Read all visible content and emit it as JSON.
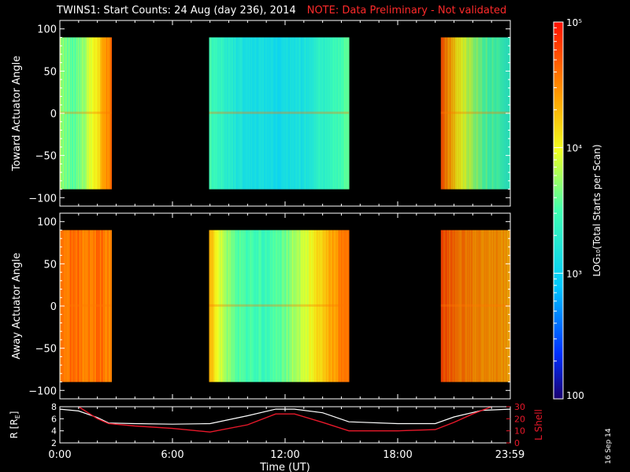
{
  "header": {
    "title": "TWINS1: Start Counts: 24 Aug (day 236), 2014",
    "note": "NOTE: Data Preliminary - Not validated"
  },
  "stamp": "16 Sep 14",
  "colors": {
    "note": "#ff2a2a",
    "lshell": "#e8182a",
    "radius": "#ffffff"
  },
  "chart_data": [
    {
      "type": "heatmap",
      "ylabel": "Toward Actuator Angle",
      "ylim": [
        -110,
        110
      ],
      "yticks": [
        "100",
        "50",
        "0",
        "−50",
        "−100"
      ],
      "ytick_values": [
        100,
        50,
        0,
        -50,
        -100
      ],
      "xlim": [
        0,
        24
      ],
      "angle_range": [
        -90,
        90
      ],
      "segments": [
        {
          "t0": 0.0,
          "t1": 2.75,
          "levels": [
            0.58,
            0.55,
            0.53,
            0.55,
            0.6,
            0.66,
            0.72,
            0.8,
            0.88
          ]
        },
        {
          "t0": 7.95,
          "t1": 15.4,
          "levels": [
            0.5,
            0.45,
            0.4,
            0.38,
            0.37,
            0.36,
            0.38,
            0.4,
            0.44,
            0.48,
            0.52
          ]
        },
        {
          "t0": 20.3,
          "t1": 24.0,
          "levels": [
            0.92,
            0.8,
            0.7,
            0.62,
            0.56,
            0.52,
            0.5,
            0.48,
            0.46
          ]
        }
      ]
    },
    {
      "type": "heatmap",
      "ylabel": "Away Actuator Angle",
      "ylim": [
        -110,
        110
      ],
      "yticks": [
        "100",
        "50",
        "0",
        "−50",
        "−100"
      ],
      "ytick_values": [
        100,
        50,
        0,
        -50,
        -100
      ],
      "xlim": [
        0,
        24
      ],
      "angle_range": [
        -90,
        90
      ],
      "segments": [
        {
          "t0": 0.0,
          "t1": 2.75,
          "levels": [
            0.84,
            0.86,
            0.88,
            0.86,
            0.84,
            0.86,
            0.88,
            0.84,
            0.82
          ]
        },
        {
          "t0": 7.95,
          "t1": 15.4,
          "levels": [
            0.78,
            0.6,
            0.52,
            0.5,
            0.48,
            0.52,
            0.58,
            0.65,
            0.72,
            0.82,
            0.88
          ]
        },
        {
          "t0": 20.3,
          "t1": 24.0,
          "levels": [
            0.92,
            0.88,
            0.86,
            0.84,
            0.84,
            0.82,
            0.82,
            0.8,
            0.8
          ]
        }
      ]
    },
    {
      "type": "line",
      "ylabel": "R [R",
      "ylabel_sub": "E",
      "ylabel_end": "]",
      "y2label": "L Shell",
      "xlabel": "Time (UT)",
      "xlim": [
        0,
        24
      ],
      "ylim": [
        2,
        8
      ],
      "yticks": [
        "8",
        "6",
        "4",
        "2"
      ],
      "ytick_values": [
        8,
        6,
        4,
        2
      ],
      "y2lim": [
        0,
        30
      ],
      "y2ticks": [
        "30",
        "20",
        "10",
        "0"
      ],
      "y2tick_values": [
        30,
        20,
        10,
        0
      ],
      "xticks": [
        "0:00",
        "6:00",
        "12:00",
        "18:00",
        "23:59"
      ],
      "xtick_values": [
        0,
        6,
        12,
        18,
        23.98
      ],
      "series": [
        {
          "x": [
            0,
            1,
            2,
            2.6,
            4,
            6,
            8,
            10,
            11.5,
            12.5,
            14,
            15.4,
            18,
            20,
            21,
            22.5,
            24
          ],
          "y": [
            7.6,
            7.3,
            6.2,
            5.3,
            5.2,
            5.1,
            5.2,
            6.5,
            7.6,
            7.6,
            7.0,
            5.5,
            5.2,
            5.2,
            6.3,
            7.4,
            7.6
          ]
        },
        {
          "x": [
            1.0,
            2.0,
            2.6,
            4,
            6,
            8,
            10,
            11.5,
            12.5,
            14,
            15.4,
            18,
            20,
            21,
            22,
            23
          ],
          "y2": [
            30,
            20,
            16,
            14,
            12,
            9,
            15,
            24,
            24,
            17,
            10,
            10,
            11,
            17,
            24,
            30
          ]
        }
      ]
    }
  ],
  "colorbar": {
    "label": "LOG₁₀(Total Starts per Scan)",
    "ticks": [
      "10⁵",
      "10⁴",
      "10³",
      "100"
    ],
    "tick_values": [
      100000,
      10000,
      1000,
      100
    ],
    "range": [
      100,
      100000
    ]
  }
}
